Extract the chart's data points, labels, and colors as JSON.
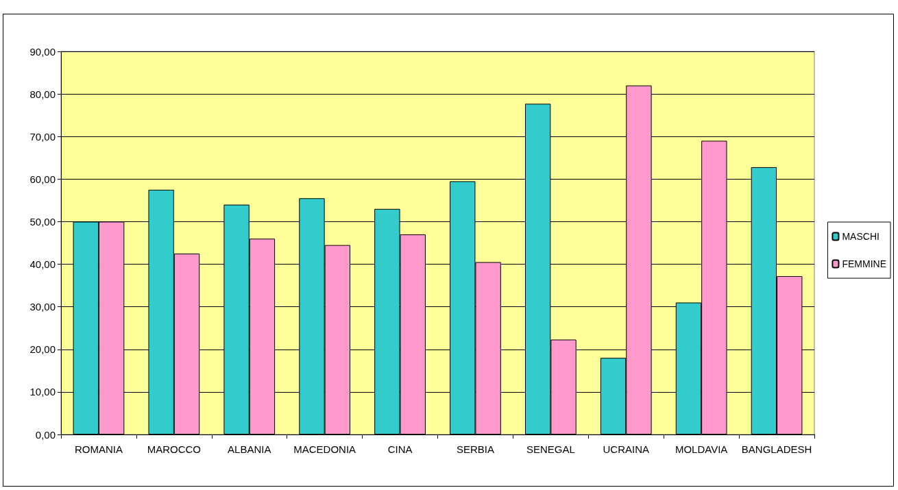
{
  "chart_data": {
    "type": "bar",
    "categories": [
      "ROMANIA",
      "MAROCCO",
      "ALBANIA",
      "MACEDONIA",
      "CINA",
      "SERBIA",
      "SENEGAL",
      "UCRAINA",
      "MOLDAVIA",
      "BANGLADESH"
    ],
    "series": [
      {
        "name": "MASCHI",
        "color": "#33cccc",
        "values": [
          50,
          57.5,
          54,
          55.5,
          53,
          59.5,
          77.7,
          18,
          31,
          62.8
        ]
      },
      {
        "name": "FEMMINE",
        "color": "#ff99cc",
        "values": [
          50,
          42.5,
          46,
          44.5,
          47,
          40.5,
          22.3,
          82,
          69,
          37.2
        ]
      }
    ],
    "ylim": [
      0,
      90
    ],
    "yticks": [
      {
        "value": 0,
        "label": "0,00"
      },
      {
        "value": 10,
        "label": "10,00"
      },
      {
        "value": 20,
        "label": "20,00"
      },
      {
        "value": 30,
        "label": "30,00"
      },
      {
        "value": 40,
        "label": "40,00"
      },
      {
        "value": 50,
        "label": "50,00"
      },
      {
        "value": 60,
        "label": "60,00"
      },
      {
        "value": 70,
        "label": "70,00"
      },
      {
        "value": 80,
        "label": "80,00"
      },
      {
        "value": 90,
        "label": "90,00"
      }
    ],
    "grid": "y",
    "legend": "right"
  }
}
